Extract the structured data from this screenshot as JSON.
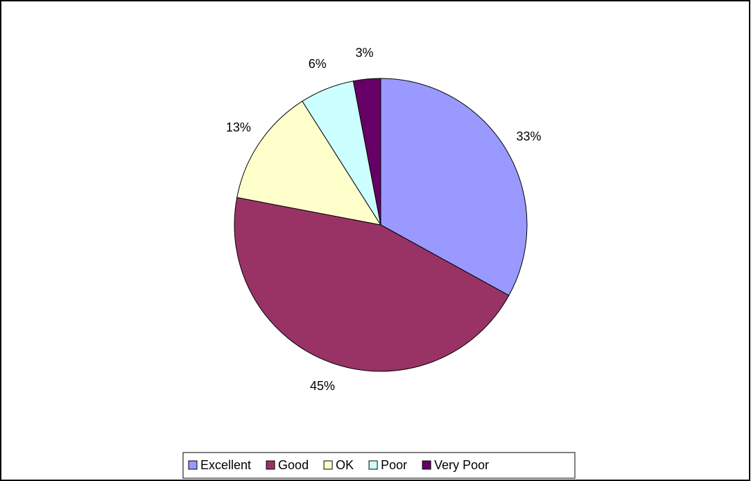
{
  "chart_data": {
    "type": "pie",
    "categories": [
      "Excellent",
      "Good",
      "OK",
      "Poor",
      "Very Poor"
    ],
    "values": [
      33,
      45,
      13,
      6,
      3
    ],
    "value_labels": [
      "33%",
      "45%",
      "13%",
      "6%",
      "3%"
    ],
    "colors": [
      "#9999ff",
      "#993366",
      "#ffffcc",
      "#ccffff",
      "#660066"
    ],
    "legend": "bottom"
  }
}
